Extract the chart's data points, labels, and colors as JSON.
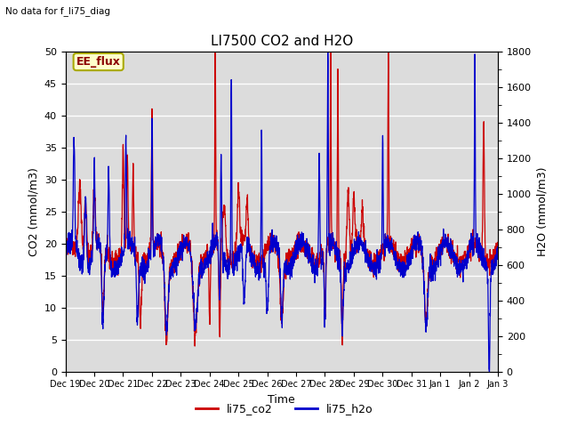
{
  "title": "LI7500 CO2 and H2O",
  "top_left_text": "No data for f_li75_diag",
  "box_label": "EE_flux",
  "xlabel": "Time",
  "ylabel_left": "CO2 (mmol/m3)",
  "ylabel_right": "H2O (mmol/m3)",
  "ylim_left": [
    0,
    50
  ],
  "ylim_right": [
    0,
    1800
  ],
  "xtick_labels": [
    "Dec 19",
    "Dec 20",
    "Dec 21",
    "Dec 22",
    "Dec 23",
    "Dec 24",
    "Dec 25",
    "Dec 26",
    "Dec 27",
    "Dec 28",
    "Dec 29",
    "Dec 30",
    "Dec 31",
    "Jan 1",
    "Jan 2",
    "Jan 3"
  ],
  "color_co2": "#cc0000",
  "color_h2o": "#0000cc",
  "legend_co2": "li75_co2",
  "legend_h2o": "li75_h2o",
  "bg_color": "#dcdcdc",
  "fig_bg": "#ffffff",
  "title_fontsize": 11,
  "label_fontsize": 9,
  "tick_fontsize": 8,
  "legend_fontsize": 9
}
